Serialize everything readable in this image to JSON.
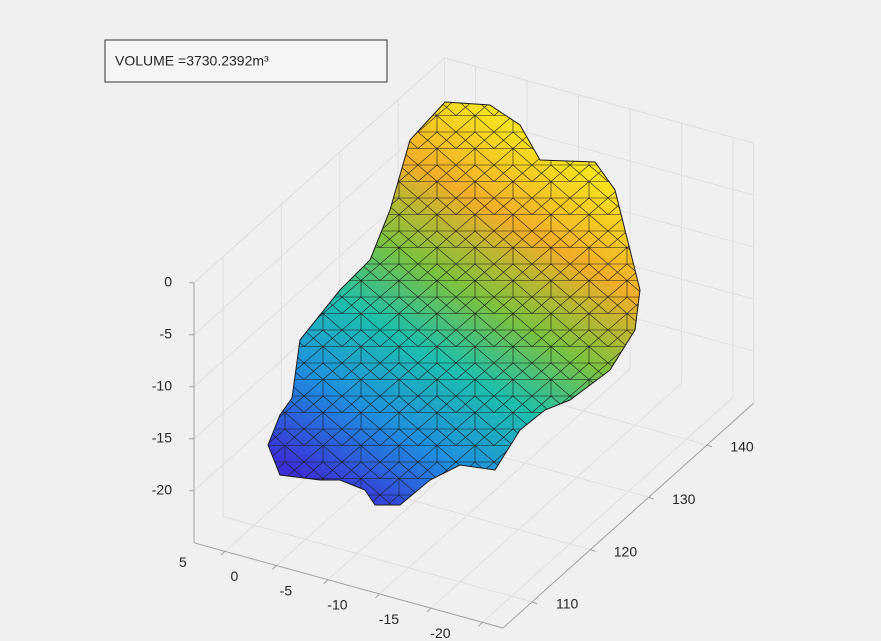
{
  "chart_data": {
    "type": "trisurf",
    "annotation": "VOLUME =3730.2392m³",
    "colormap": "parula",
    "xlim": [
      -22,
      8
    ],
    "ylim": [
      105,
      148
    ],
    "zlim": [
      -25,
      0
    ],
    "xticks": [
      5,
      0,
      -5,
      -10,
      -15,
      -20
    ],
    "yticks": [
      110,
      120,
      130,
      140
    ],
    "zticks": [
      0,
      -5,
      -10,
      -15,
      -20
    ],
    "grid": true
  }
}
